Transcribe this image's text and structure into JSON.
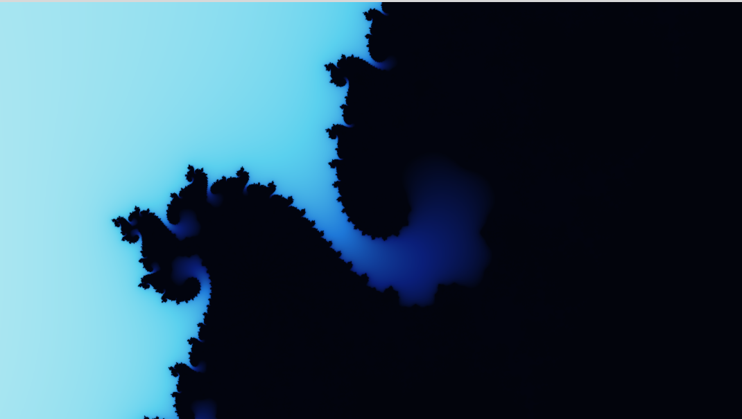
{
  "image": {
    "subject": "fractal-render",
    "palette": {
      "deep_red": "#7a0a05",
      "red": "#b81a0c",
      "orange": "#e0700e",
      "gold": "#f0b048",
      "cream": "#f4e2a0",
      "pale_cyan": "#c8eef2",
      "cyan": "#5ad0ee",
      "blue": "#1e78d8",
      "navy": "#0a1e78",
      "black": "#02040c",
      "top_strip": "#d8d8d8"
    }
  }
}
